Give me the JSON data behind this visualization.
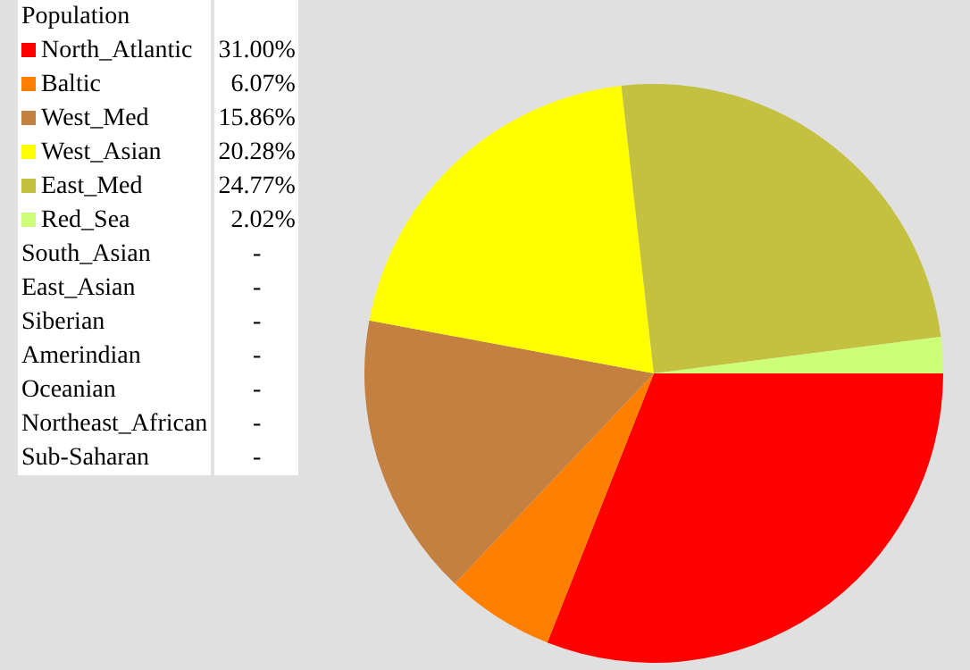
{
  "chart_data": {
    "type": "pie",
    "title": "Population",
    "legend": "left",
    "categories": [
      "North_Atlantic",
      "Baltic",
      "West_Med",
      "West_Asian",
      "East_Med",
      "Red_Sea",
      "South_Asian",
      "East_Asian",
      "Siberian",
      "Amerindian",
      "Oceanian",
      "Northeast_African",
      "Sub-Saharan"
    ],
    "values": [
      31.0,
      6.07,
      15.86,
      20.28,
      24.77,
      2.02,
      null,
      null,
      null,
      null,
      null,
      null,
      null
    ],
    "colors": [
      "#ff0000",
      "#ff8000",
      "#c38040",
      "#ffff00",
      "#c4c040",
      "#ccff77",
      null,
      null,
      null,
      null,
      null,
      null,
      null
    ],
    "value_labels": [
      "31.00%",
      "6.07%",
      "15.86%",
      "20.28%",
      "24.77%",
      "2.02%",
      "-",
      "-",
      "-",
      "-",
      "-",
      "-",
      "-"
    ]
  }
}
